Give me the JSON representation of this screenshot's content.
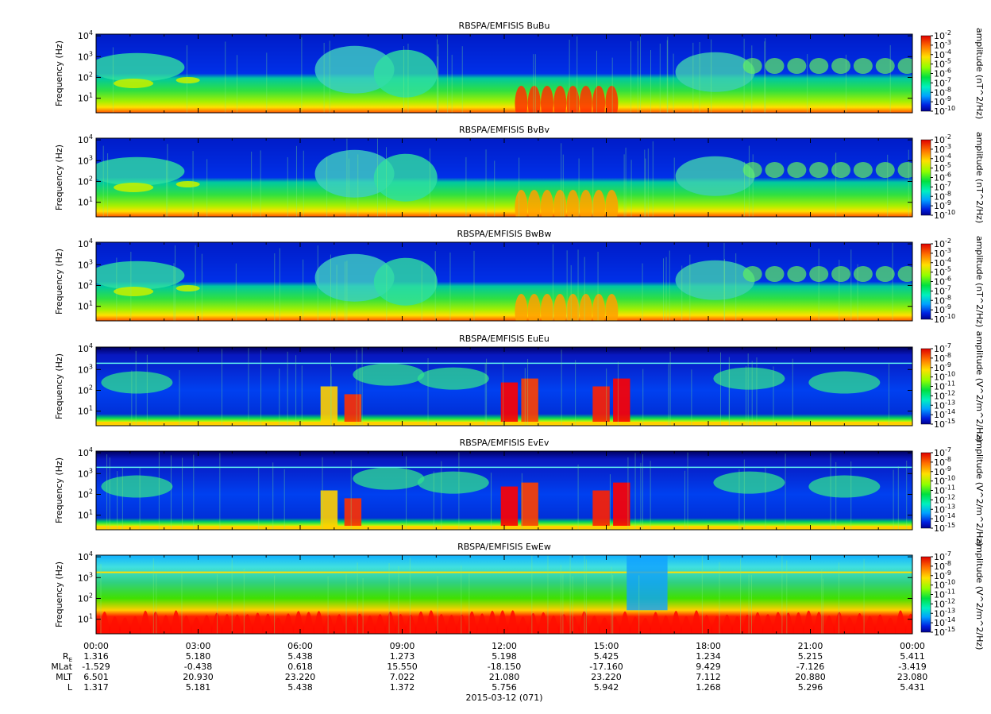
{
  "chart_data": {
    "type": "heatmap",
    "date_label": "2015-03-12 (071)",
    "panels": [
      {
        "title": "RBSPA/EMFISIS  BuBu",
        "ylabel": "Frequency (Hz)",
        "colorbar_label": "amplitude (nT^2/Hz)",
        "cbar_ticks": [
          "10^-2",
          "10^-3",
          "10^-4",
          "10^-5",
          "10^-6",
          "10^-7",
          "10^-8",
          "10^-9",
          "10^-10"
        ],
        "kind": "B"
      },
      {
        "title": "RBSPA/EMFISIS  BvBv",
        "ylabel": "Frequency (Hz)",
        "colorbar_label": "amplitude (nT^2/Hz)",
        "cbar_ticks": [
          "10^-2",
          "10^-3",
          "10^-4",
          "10^-5",
          "10^-6",
          "10^-7",
          "10^-8",
          "10^-9",
          "10^-10"
        ],
        "kind": "B"
      },
      {
        "title": "RBSPA/EMFISIS  BwBw",
        "ylabel": "Frequency (Hz)",
        "colorbar_label": "amplitude (nT^2/Hz)",
        "cbar_ticks": [
          "10^-2",
          "10^-3",
          "10^-4",
          "10^-5",
          "10^-6",
          "10^-7",
          "10^-8",
          "10^-9",
          "10^-10"
        ],
        "kind": "B"
      },
      {
        "title": "RBSPA/EMFISIS  EuEu",
        "ylabel": "Frequency (Hz)",
        "colorbar_label": "amplitude (V^2/m^2/Hz)",
        "cbar_ticks": [
          "10^-7",
          "10^-8",
          "10^-9",
          "10^-10",
          "10^-11",
          "10^-12",
          "10^-13",
          "10^-14",
          "10^-15"
        ],
        "kind": "E"
      },
      {
        "title": "RBSPA/EMFISIS  EvEv",
        "ylabel": "Frequency (Hz)",
        "colorbar_label": "amplitude (V^2/m^2/Hz)",
        "cbar_ticks": [
          "10^-7",
          "10^-8",
          "10^-9",
          "10^-10",
          "10^-11",
          "10^-12",
          "10^-13",
          "10^-14",
          "10^-15"
        ],
        "kind": "E"
      },
      {
        "title": "RBSPA/EMFISIS  EwEw",
        "ylabel": "Frequency (Hz)",
        "colorbar_label": "amplitude (V^2/m^2/Hz)",
        "cbar_ticks": [
          "10^-7",
          "10^-8",
          "10^-9",
          "10^-10",
          "10^-11",
          "10^-12",
          "10^-13",
          "10^-14",
          "10^-15"
        ],
        "kind": "Ew"
      }
    ],
    "y_ticks": [
      "10^1",
      "10^2",
      "10^3",
      "10^4"
    ],
    "ylim_hz": [
      2,
      12000
    ],
    "y_scale": "log",
    "x_ticks": [
      "00:00",
      "03:00",
      "06:00",
      "09:00",
      "12:00",
      "15:00",
      "18:00",
      "21:00",
      "00:00"
    ],
    "xlim_hours": [
      0,
      24
    ],
    "ephemeris": {
      "labels": [
        "RE",
        "MLat",
        "MLT",
        "L"
      ],
      "rows": [
        [
          "1.316",
          "5.180",
          "5.438",
          "1.273",
          "5.198",
          "5.425",
          "1.234",
          "5.215",
          "5.411"
        ],
        [
          "-1.529",
          "-0.438",
          "0.618",
          "15.550",
          "-18.150",
          "-17.160",
          "9.429",
          "-7.126",
          "-3.419"
        ],
        [
          "6.501",
          "20.930",
          "23.220",
          "7.022",
          "21.080",
          "23.220",
          "7.112",
          "20.880",
          "23.080"
        ],
        [
          "1.317",
          "5.181",
          "5.438",
          "1.372",
          "5.756",
          "5.942",
          "1.268",
          "5.296",
          "5.431"
        ]
      ]
    }
  }
}
